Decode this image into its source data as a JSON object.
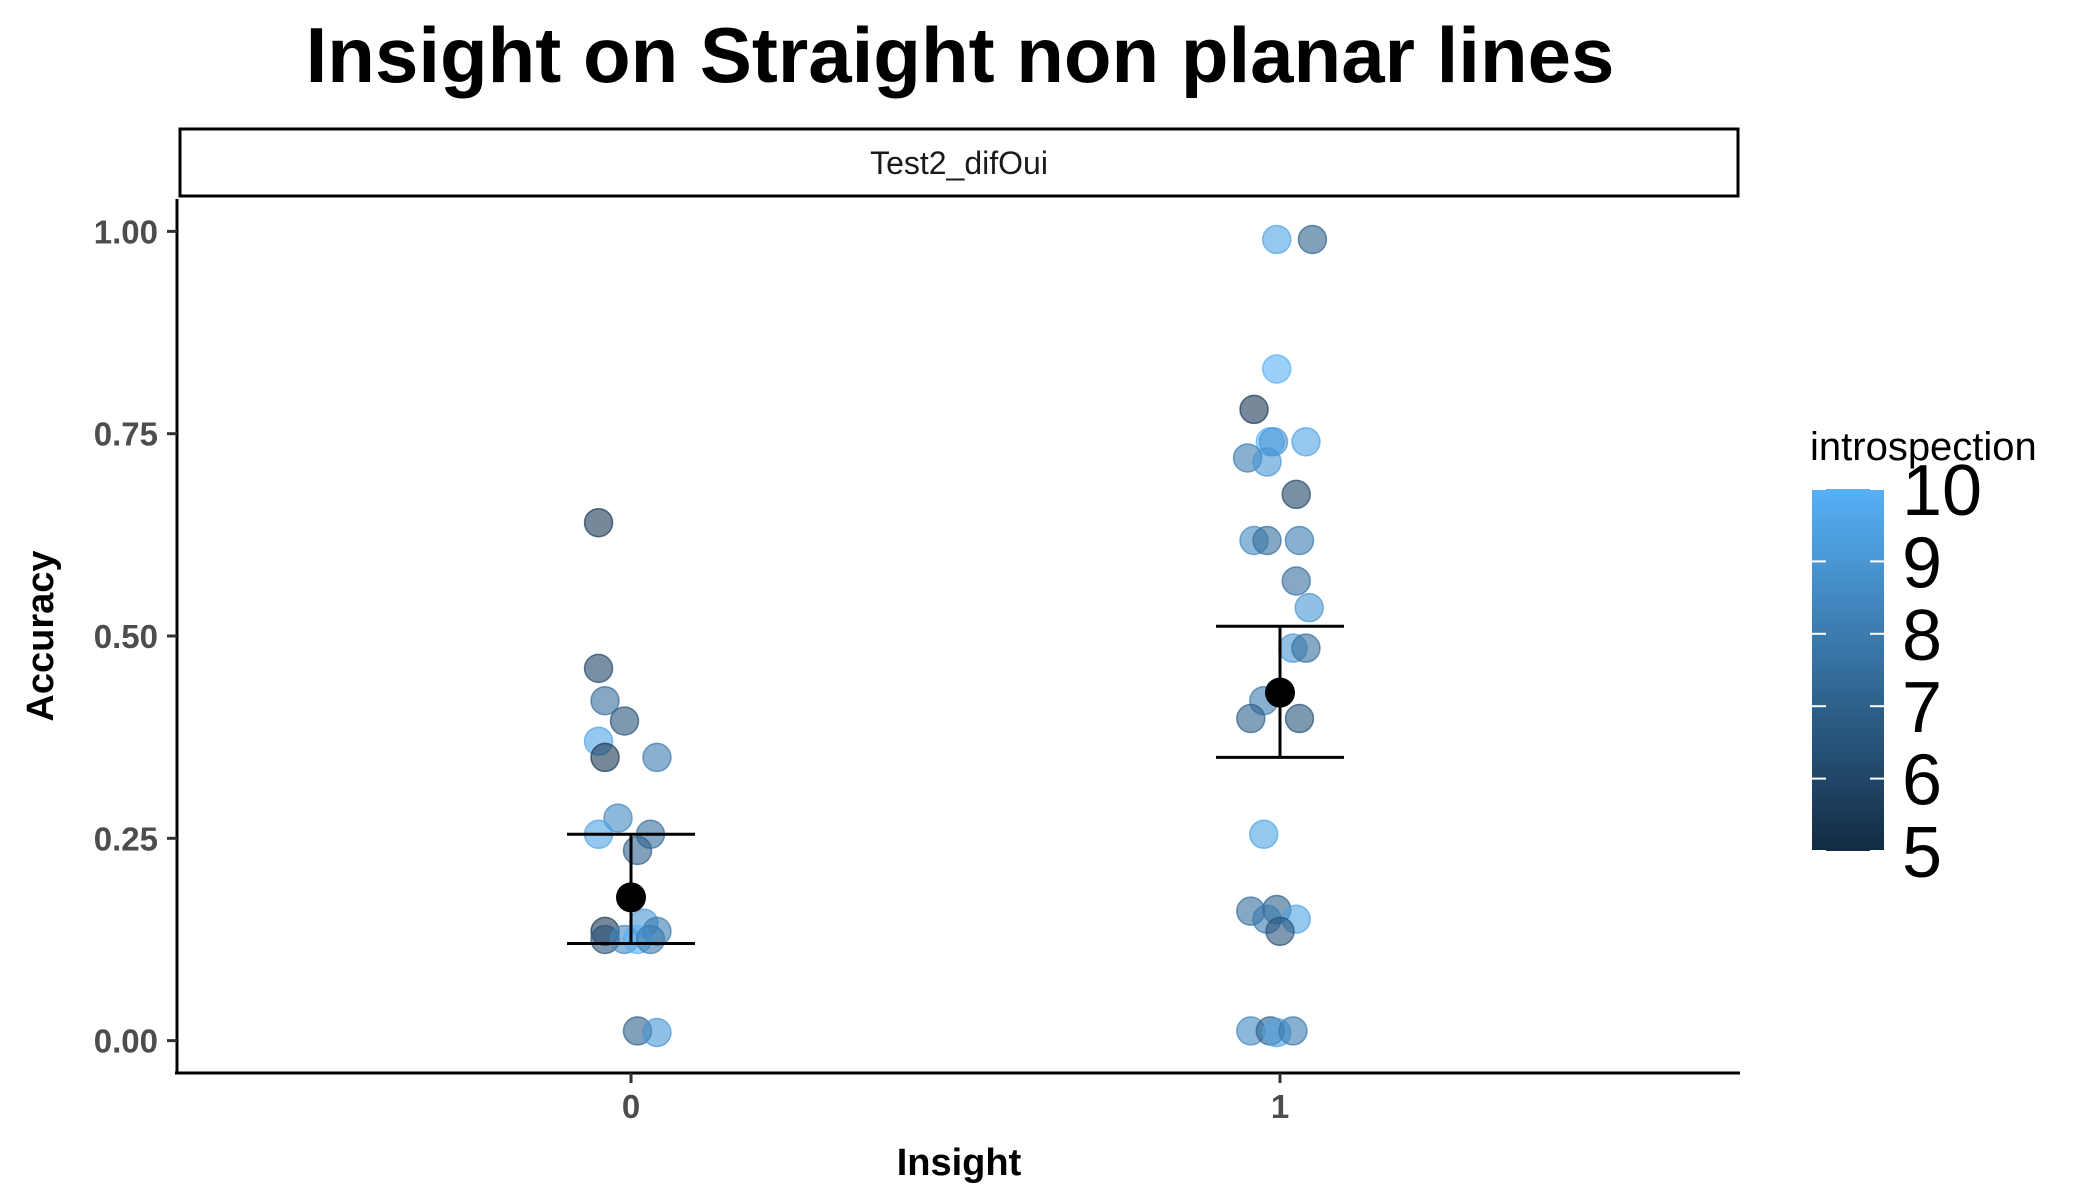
{
  "chart_data": {
    "type": "scatter",
    "title": "Insight on Straight non planar lines",
    "facet_label": "Test2_difOui",
    "xlabel": "Insight",
    "ylabel": "Accuracy",
    "categories": [
      "0",
      "1"
    ],
    "ylim": [
      -0.04,
      1.04
    ],
    "yticks": [
      0,
      0.25,
      0.5,
      0.75,
      1
    ],
    "ytick_labels": [
      "0.00",
      "0.25",
      "0.50",
      "0.75",
      "1.00"
    ],
    "grid": false,
    "legend": {
      "title": "introspection",
      "position": "right",
      "type": "colorbar",
      "range": [
        5,
        10
      ],
      "labels": [
        "10",
        "9",
        "8",
        "7",
        "6",
        "5"
      ],
      "label_values": [
        10,
        9,
        8,
        7,
        6,
        5
      ],
      "color_low": "#132B43",
      "color_high": "#56B1F7"
    },
    "series": [
      {
        "kind": "jittered points",
        "points": [
          {
            "x": -0.05,
            "y": 0.64,
            "c": 5.5
          },
          {
            "x": -0.05,
            "y": 0.46,
            "c": 6
          },
          {
            "x": -0.04,
            "y": 0.42,
            "c": 7.5
          },
          {
            "x": -0.01,
            "y": 0.395,
            "c": 6.5
          },
          {
            "x": -0.05,
            "y": 0.37,
            "c": 9.5
          },
          {
            "x": -0.04,
            "y": 0.35,
            "c": 5.5
          },
          {
            "x": 0.04,
            "y": 0.35,
            "c": 8
          },
          {
            "x": -0.02,
            "y": 0.275,
            "c": 8.5
          },
          {
            "x": -0.05,
            "y": 0.255,
            "c": 9.5
          },
          {
            "x": 0.03,
            "y": 0.255,
            "c": 7.5
          },
          {
            "x": 0.01,
            "y": 0.235,
            "c": 7
          },
          {
            "x": 0.02,
            "y": 0.145,
            "c": 9
          },
          {
            "x": -0.04,
            "y": 0.135,
            "c": 5.5
          },
          {
            "x": 0.04,
            "y": 0.135,
            "c": 8
          },
          {
            "x": -0.04,
            "y": 0.125,
            "c": 6.5
          },
          {
            "x": -0.01,
            "y": 0.125,
            "c": 8.5
          },
          {
            "x": 0.01,
            "y": 0.125,
            "c": 10
          },
          {
            "x": 0.03,
            "y": 0.125,
            "c": 8
          },
          {
            "x": 0.01,
            "y": 0.012,
            "c": 7
          },
          {
            "x": 0.04,
            "y": 0.01,
            "c": 9
          },
          {
            "x": 0.995,
            "y": 0.99,
            "c": 9.5
          },
          {
            "x": 1.05,
            "y": 0.99,
            "c": 7
          },
          {
            "x": 0.995,
            "y": 0.83,
            "c": 10
          },
          {
            "x": 0.96,
            "y": 0.78,
            "c": 5.5
          },
          {
            "x": 0.985,
            "y": 0.74,
            "c": 10
          },
          {
            "x": 0.99,
            "y": 0.74,
            "c": 9
          },
          {
            "x": 1.04,
            "y": 0.74,
            "c": 9.5
          },
          {
            "x": 0.95,
            "y": 0.72,
            "c": 8
          },
          {
            "x": 0.98,
            "y": 0.715,
            "c": 9
          },
          {
            "x": 1.025,
            "y": 0.675,
            "c": 6
          },
          {
            "x": 0.96,
            "y": 0.618,
            "c": 8.5
          },
          {
            "x": 0.98,
            "y": 0.618,
            "c": 7.5
          },
          {
            "x": 1.03,
            "y": 0.618,
            "c": 8
          },
          {
            "x": 1.025,
            "y": 0.568,
            "c": 7.5
          },
          {
            "x": 1.045,
            "y": 0.535,
            "c": 9
          },
          {
            "x": 1.02,
            "y": 0.485,
            "c": 9
          },
          {
            "x": 1.04,
            "y": 0.485,
            "c": 7.5
          },
          {
            "x": 0.975,
            "y": 0.42,
            "c": 8
          },
          {
            "x": 0.955,
            "y": 0.398,
            "c": 7
          },
          {
            "x": 1.03,
            "y": 0.398,
            "c": 6.5
          },
          {
            "x": 0.975,
            "y": 0.255,
            "c": 9.5
          },
          {
            "x": 0.955,
            "y": 0.16,
            "c": 7.5
          },
          {
            "x": 0.995,
            "y": 0.162,
            "c": 7
          },
          {
            "x": 0.98,
            "y": 0.15,
            "c": 8
          },
          {
            "x": 1.025,
            "y": 0.15,
            "c": 9.5
          },
          {
            "x": 1.0,
            "y": 0.135,
            "c": 6.5
          },
          {
            "x": 0.955,
            "y": 0.012,
            "c": 8.5
          },
          {
            "x": 0.985,
            "y": 0.012,
            "c": 7
          },
          {
            "x": 0.995,
            "y": 0.01,
            "c": 9.5
          },
          {
            "x": 1.02,
            "y": 0.012,
            "c": 8
          }
        ]
      },
      {
        "kind": "mean with error bars",
        "points": [
          {
            "x": 0,
            "y": 0.177,
            "ymin": 0.12,
            "ymax": 0.255
          },
          {
            "x": 1,
            "y": 0.43,
            "ymin": 0.35,
            "ymax": 0.512
          }
        ]
      }
    ]
  }
}
